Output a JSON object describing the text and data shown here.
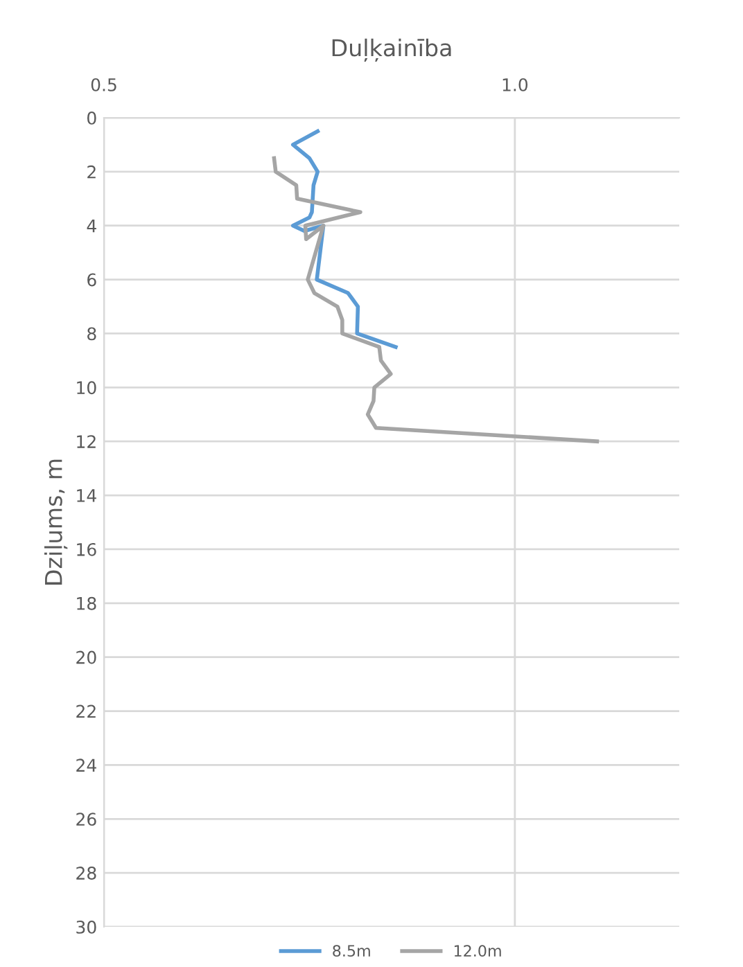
{
  "chart_data": {
    "type": "line",
    "title": "Duļķainība",
    "ylabel": "Dziļums, m",
    "xlim": [
      0.5,
      1.2
    ],
    "xticks": [
      {
        "value": 0.5,
        "label": "0.5"
      },
      {
        "value": 1.0,
        "label": "1.0"
      }
    ],
    "ylim": [
      30,
      0
    ],
    "yticks": [
      0,
      2,
      4,
      6,
      8,
      10,
      12,
      14,
      16,
      18,
      20,
      22,
      24,
      26,
      28,
      30
    ],
    "grid": true,
    "legend": "bottom",
    "marker": "none",
    "line_style": "solid",
    "series": [
      {
        "name": "8.5m",
        "color": "#5b9bd5",
        "x": [
          0.76,
          0.73,
          0.75,
          0.76,
          0.755,
          0.753,
          0.75,
          0.73,
          0.744,
          0.767,
          0.759,
          0.797,
          0.809,
          0.808,
          0.855
        ],
        "values": [
          0.5,
          1,
          1.5,
          2,
          2.5,
          3.5,
          3.7,
          4,
          4.2,
          4,
          6,
          6.5,
          7,
          8,
          8.5
        ]
      },
      {
        "name": "12.0m",
        "color": "#a5a5a5",
        "x": [
          0.707,
          0.709,
          0.734,
          0.735,
          0.812,
          0.745,
          0.746,
          0.767,
          0.748,
          0.756,
          0.784,
          0.79,
          0.79,
          0.835,
          0.837,
          0.849,
          0.829,
          0.828,
          0.821,
          0.831,
          1.1
        ],
        "values": [
          1.5,
          2,
          2.5,
          3,
          3.5,
          4,
          4.5,
          4,
          6,
          6.5,
          7,
          7.5,
          8,
          8.5,
          9,
          9.5,
          10,
          10.5,
          11,
          11.5,
          12
        ]
      }
    ]
  }
}
